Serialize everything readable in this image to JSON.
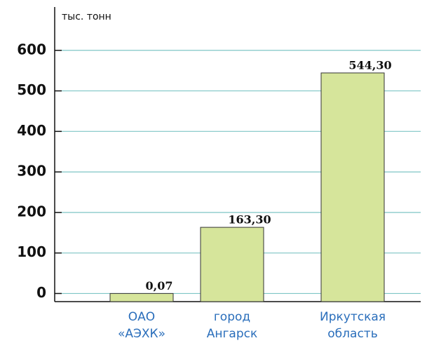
{
  "chart_data": {
    "type": "bar",
    "y_axis_label": "тыс. тонн",
    "categories": [
      [
        "ОАО",
        "«АЭХК»"
      ],
      [
        "город",
        "Ангарск"
      ],
      [
        "Иркутская",
        "область"
      ]
    ],
    "values": [
      0.07,
      163.3,
      544.3
    ],
    "value_labels": [
      "0,07",
      "163,30",
      "544,30"
    ],
    "color": "#d6e59b",
    "ylim": [
      -20,
      700
    ],
    "yticks": [
      0,
      100,
      200,
      300,
      400,
      500,
      600
    ],
    "grid": true
  }
}
